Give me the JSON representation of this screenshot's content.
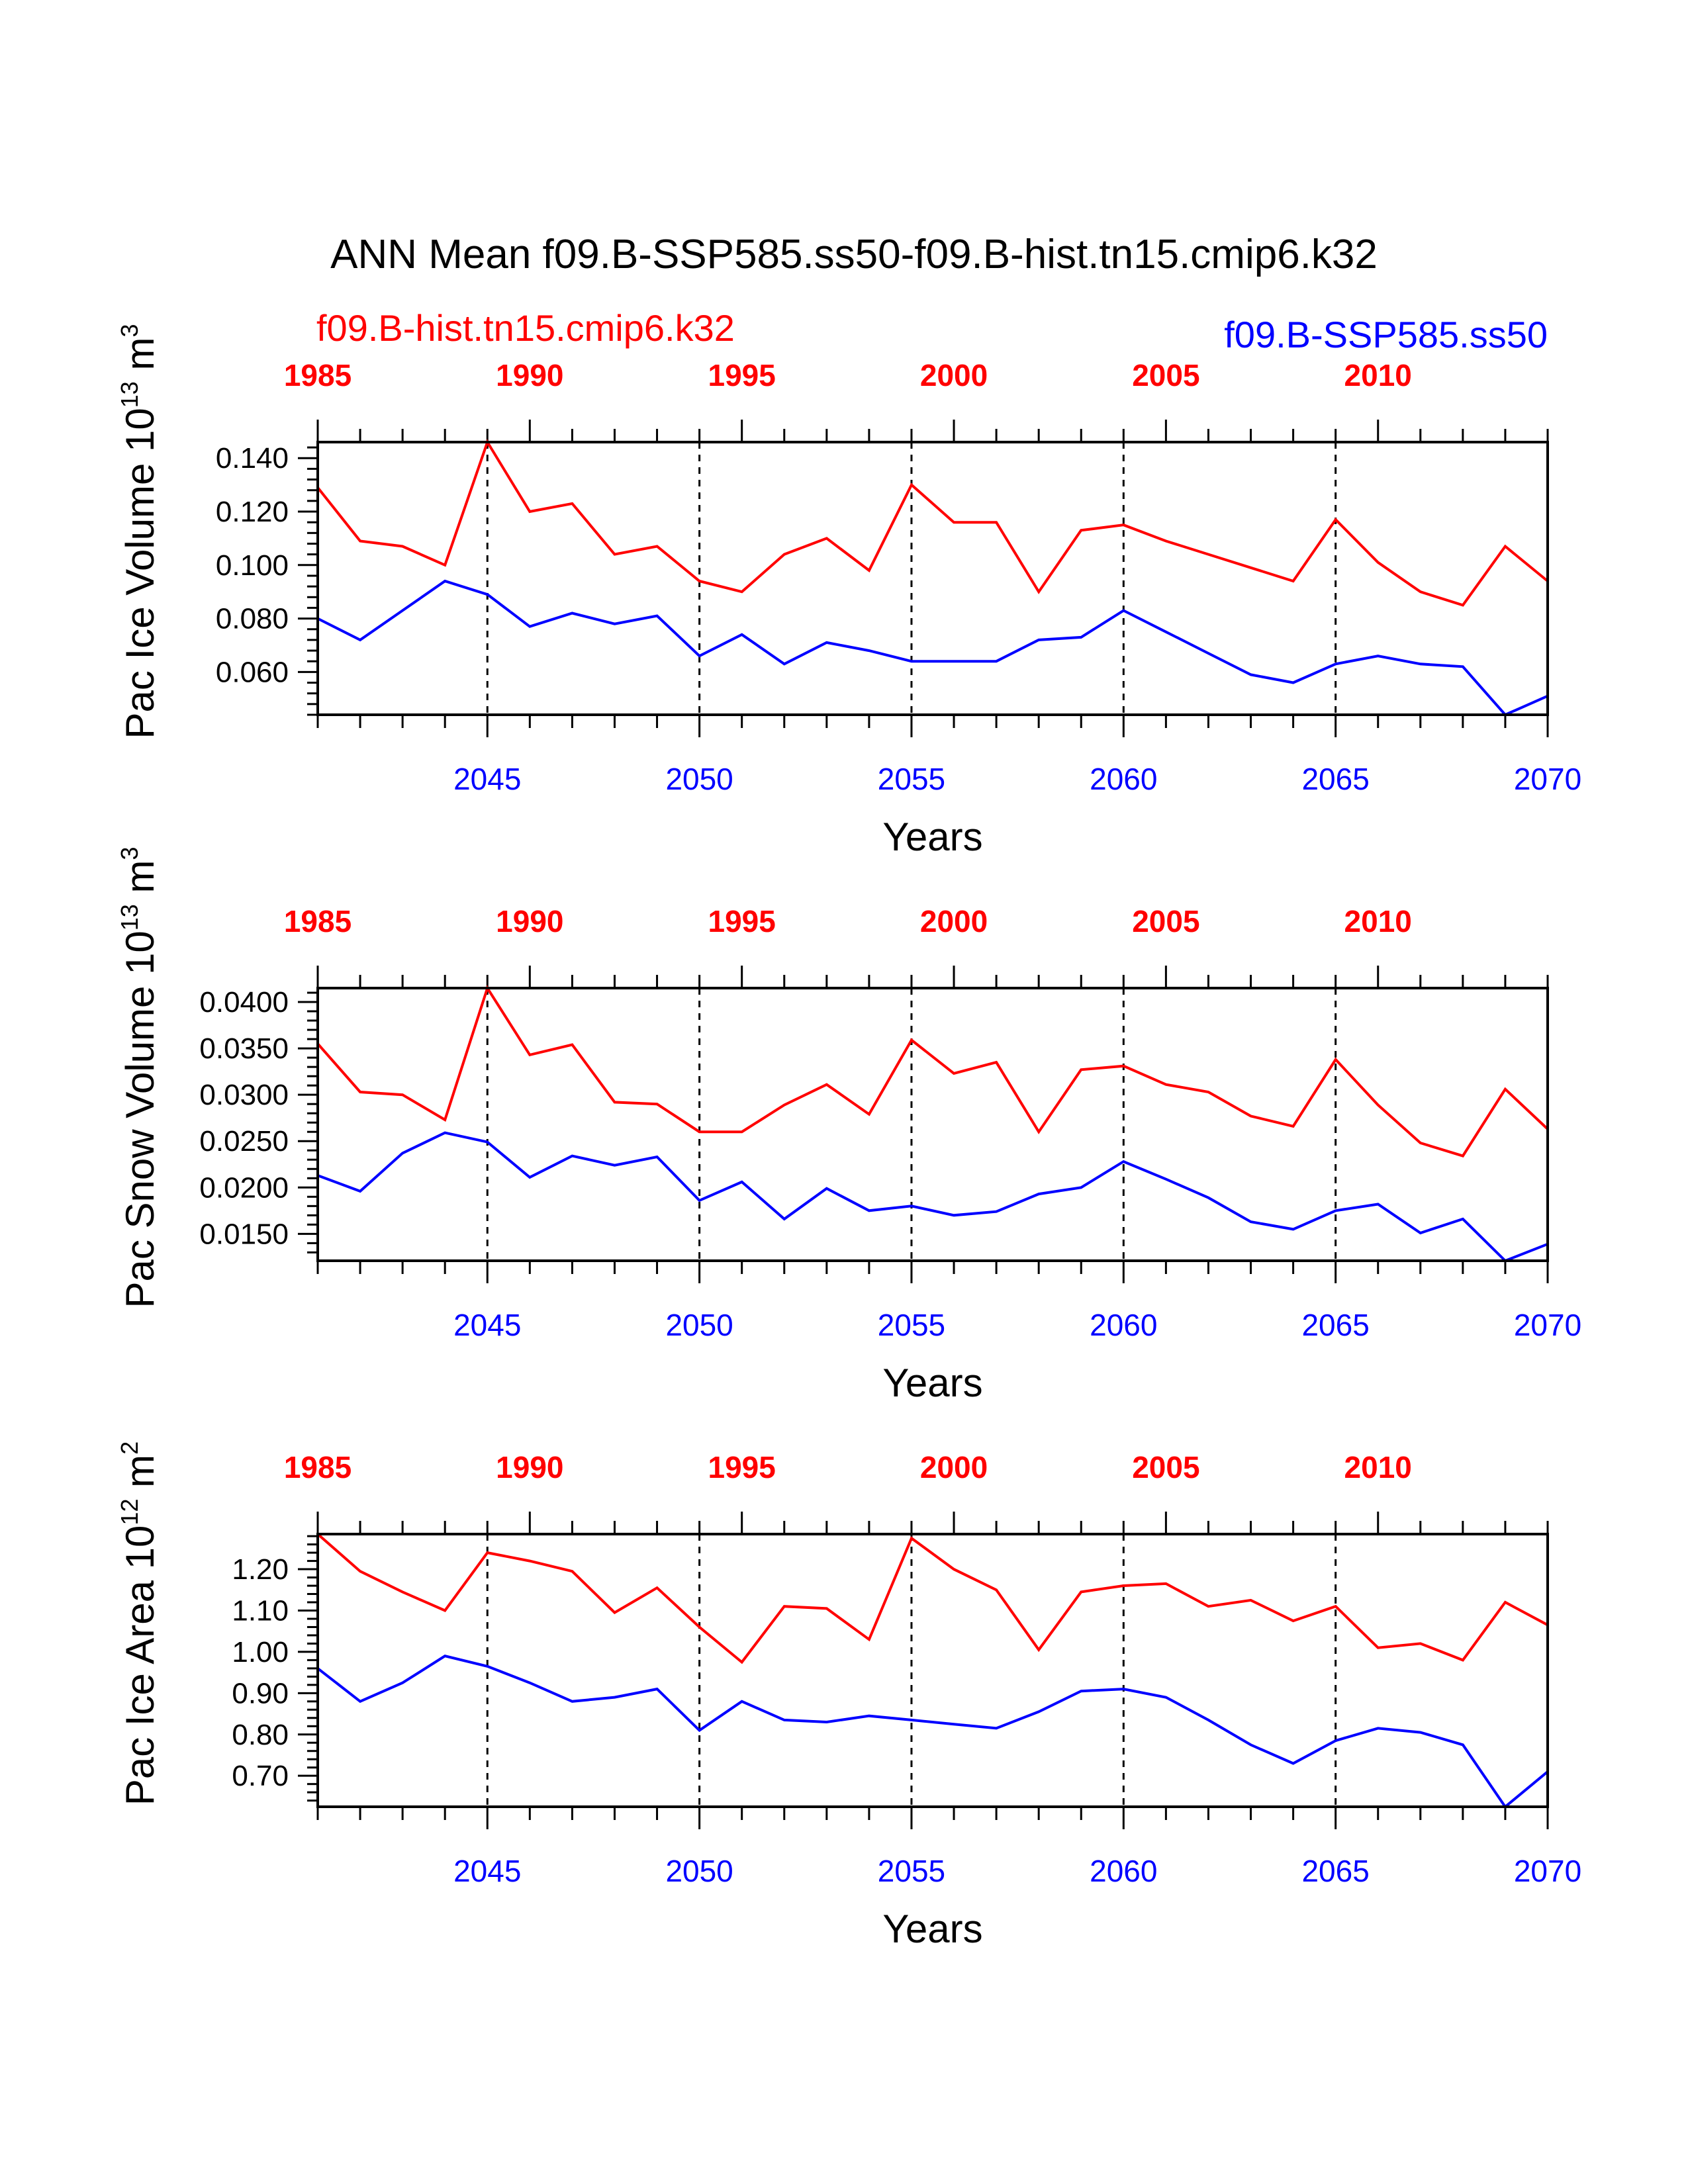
{
  "title": "ANN Mean f09.B-SSP585.ss50-f09.B-hist.tn15.cmip6.k32",
  "legend": {
    "red": "f09.B-hist.tn15.cmip6.k32",
    "blue": "f09.B-SSP585.ss50"
  },
  "colors": {
    "hist": "#ff0000",
    "ssp": "#0000ff",
    "axis": "#000000",
    "gridline": "#000000"
  },
  "chart_data": [
    {
      "type": "line",
      "ylabel": {
        "text": "Pac Ice Volume 10",
        "exp": "13",
        "unit": " m",
        "unit_exp": "3"
      },
      "xlabel": "Years",
      "xlim": [
        2041,
        2070
      ],
      "top_xlim": [
        1985,
        2014
      ],
      "ylim": [
        0.044,
        0.146
      ],
      "yticks": [
        0.06,
        0.08,
        0.1,
        0.12,
        0.14
      ],
      "ytick_labels": [
        "0.060",
        "0.080",
        "0.100",
        "0.120",
        "0.140"
      ],
      "bottom_ticks": [
        2045,
        2050,
        2055,
        2060,
        2065,
        2070
      ],
      "top_ticks": [
        1985,
        1990,
        1995,
        2000,
        2005,
        2010
      ],
      "gridlines_x": [
        2045,
        2050,
        2055,
        2060,
        2065
      ],
      "x": [
        2041,
        2042,
        2043,
        2044,
        2045,
        2046,
        2047,
        2048,
        2049,
        2050,
        2051,
        2052,
        2053,
        2054,
        2055,
        2056,
        2057,
        2058,
        2059,
        2060,
        2061,
        2062,
        2063,
        2064,
        2065,
        2066,
        2067,
        2068,
        2069,
        2070
      ],
      "series": [
        {
          "name": "f09.B-hist.tn15.cmip6.k32",
          "color": "#ff0000",
          "values": [
            0.129,
            0.109,
            0.107,
            0.1,
            0.146,
            0.12,
            0.123,
            0.104,
            0.107,
            0.094,
            0.09,
            0.104,
            0.11,
            0.098,
            0.13,
            0.116,
            0.116,
            0.09,
            0.113,
            0.115,
            0.109,
            0.104,
            0.099,
            0.094,
            0.117,
            0.101,
            0.09,
            0.085,
            0.107,
            0.094
          ]
        },
        {
          "name": "f09.B-SSP585.ss50",
          "color": "#0000ff",
          "values": [
            0.08,
            0.072,
            0.083,
            0.094,
            0.089,
            0.077,
            0.082,
            0.078,
            0.081,
            0.066,
            0.074,
            0.063,
            0.071,
            0.068,
            0.064,
            0.064,
            0.064,
            0.072,
            0.073,
            0.083,
            0.075,
            0.067,
            0.059,
            0.056,
            0.063,
            0.066,
            0.063,
            0.062,
            0.044,
            0.051
          ]
        }
      ]
    },
    {
      "type": "line",
      "ylabel": {
        "text": "Pac Snow Volume 10",
        "exp": "13",
        "unit": " m",
        "unit_exp": "3"
      },
      "xlabel": "Years",
      "xlim": [
        2041,
        2070
      ],
      "top_xlim": [
        1985,
        2014
      ],
      "ylim": [
        0.0121,
        0.0415
      ],
      "yticks": [
        0.015,
        0.02,
        0.025,
        0.03,
        0.035,
        0.04
      ],
      "ytick_labels": [
        "0.0150",
        "0.0200",
        "0.0250",
        "0.0300",
        "0.0350",
        "0.0400"
      ],
      "bottom_ticks": [
        2045,
        2050,
        2055,
        2060,
        2065,
        2070
      ],
      "top_ticks": [
        1985,
        1990,
        1995,
        2000,
        2005,
        2010
      ],
      "gridlines_x": [
        2045,
        2050,
        2055,
        2060,
        2065
      ],
      "x": [
        2041,
        2042,
        2043,
        2044,
        2045,
        2046,
        2047,
        2048,
        2049,
        2050,
        2051,
        2052,
        2053,
        2054,
        2055,
        2056,
        2057,
        2058,
        2059,
        2060,
        2061,
        2062,
        2063,
        2064,
        2065,
        2066,
        2067,
        2068,
        2069,
        2070
      ],
      "series": [
        {
          "name": "f09.B-hist.tn15.cmip6.k32",
          "color": "#ff0000",
          "values": [
            0.0355,
            0.0303,
            0.03,
            0.0273,
            0.0415,
            0.0343,
            0.0354,
            0.0292,
            0.029,
            0.026,
            0.026,
            0.0289,
            0.0311,
            0.0279,
            0.0359,
            0.0323,
            0.0335,
            0.026,
            0.0327,
            0.0331,
            0.0311,
            0.0303,
            0.0277,
            0.0266,
            0.0338,
            0.0289,
            0.0248,
            0.0234,
            0.0306,
            0.0263
          ]
        },
        {
          "name": "f09.B-SSP585.ss50",
          "color": "#0000ff",
          "values": [
            0.0213,
            0.0196,
            0.0237,
            0.0259,
            0.0249,
            0.0211,
            0.0234,
            0.0224,
            0.0233,
            0.0186,
            0.0206,
            0.0166,
            0.0199,
            0.0175,
            0.018,
            0.017,
            0.0174,
            0.0193,
            0.02,
            0.0228,
            0.0209,
            0.0189,
            0.0163,
            0.0155,
            0.0175,
            0.0182,
            0.0151,
            0.0166,
            0.0121,
            0.0139
          ]
        }
      ]
    },
    {
      "type": "line",
      "ylabel": {
        "text": "Pac Ice Area 10",
        "exp": "12",
        "unit": " m",
        "unit_exp": "2"
      },
      "xlabel": "Years",
      "xlim": [
        2041,
        2070
      ],
      "top_xlim": [
        1985,
        2014
      ],
      "ylim": [
        0.625,
        1.285
      ],
      "yticks": [
        0.7,
        0.8,
        0.9,
        1.0,
        1.1,
        1.2
      ],
      "ytick_labels": [
        "0.70",
        "0.80",
        "0.90",
        "1.00",
        "1.10",
        "1.20"
      ],
      "bottom_ticks": [
        2045,
        2050,
        2055,
        2060,
        2065,
        2070
      ],
      "top_ticks": [
        1985,
        1990,
        1995,
        2000,
        2005,
        2010
      ],
      "gridlines_x": [
        2045,
        2050,
        2055,
        2060,
        2065
      ],
      "x": [
        2041,
        2042,
        2043,
        2044,
        2045,
        2046,
        2047,
        2048,
        2049,
        2050,
        2051,
        2052,
        2053,
        2054,
        2055,
        2056,
        2057,
        2058,
        2059,
        2060,
        2061,
        2062,
        2063,
        2064,
        2065,
        2066,
        2067,
        2068,
        2069,
        2070
      ],
      "series": [
        {
          "name": "f09.B-hist.tn15.cmip6.k32",
          "color": "#ff0000",
          "values": [
            1.285,
            1.195,
            1.145,
            1.1,
            1.24,
            1.22,
            1.195,
            1.095,
            1.155,
            1.06,
            0.975,
            1.11,
            1.105,
            1.03,
            1.275,
            1.2,
            1.15,
            1.005,
            1.145,
            1.16,
            1.165,
            1.11,
            1.125,
            1.075,
            1.11,
            1.01,
            1.02,
            0.98,
            1.12,
            1.065
          ]
        },
        {
          "name": "f09.B-SSP585.ss50",
          "color": "#0000ff",
          "values": [
            0.96,
            0.88,
            0.925,
            0.99,
            0.965,
            0.925,
            0.88,
            0.89,
            0.91,
            0.81,
            0.88,
            0.835,
            0.83,
            0.845,
            0.835,
            0.825,
            0.815,
            0.855,
            0.905,
            0.91,
            0.89,
            0.835,
            0.775,
            0.73,
            0.785,
            0.815,
            0.805,
            0.775,
            0.625,
            0.71
          ]
        }
      ]
    }
  ]
}
